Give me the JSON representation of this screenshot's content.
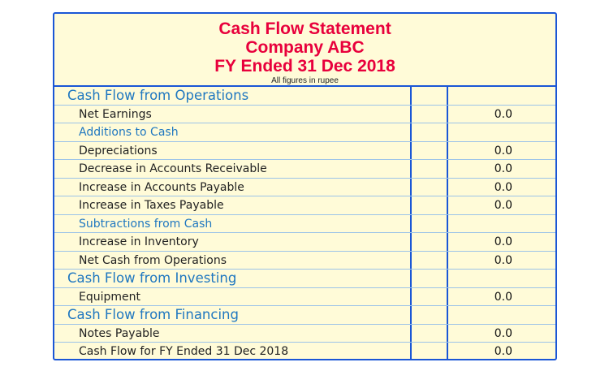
{
  "header": {
    "title": "Cash Flow Statement",
    "company": "Company ABC",
    "period": "FY Ended 31 Dec 2018",
    "note": "All figures in rupee"
  },
  "colors": {
    "border": "#1a56d6",
    "background": "#fffbd8",
    "title": "#e8003c",
    "section": "#1f77c0"
  },
  "rows": [
    {
      "type": "section",
      "label": "Cash Flow from Operations",
      "value": ""
    },
    {
      "type": "item",
      "label": "Net Earnings",
      "value": "0.0"
    },
    {
      "type": "sub",
      "label": "Additions to Cash",
      "value": ""
    },
    {
      "type": "item",
      "label": "Depreciations",
      "value": "0.0"
    },
    {
      "type": "item",
      "label": "Decrease in Accounts Receivable",
      "value": "0.0"
    },
    {
      "type": "item",
      "label": "Increase in Accounts Payable",
      "value": "0.0"
    },
    {
      "type": "item",
      "label": "Increase in Taxes Payable",
      "value": "0.0"
    },
    {
      "type": "sub",
      "label": "Subtractions from Cash",
      "value": ""
    },
    {
      "type": "item",
      "label": "Increase in Inventory",
      "value": "0.0"
    },
    {
      "type": "item",
      "label": "Net Cash from Operations",
      "value": "0.0"
    },
    {
      "type": "section",
      "label": "Cash Flow from Investing",
      "value": ""
    },
    {
      "type": "item",
      "label": "Equipment",
      "value": "0.0"
    },
    {
      "type": "section",
      "label": "Cash Flow from Financing",
      "value": ""
    },
    {
      "type": "item",
      "label": "Notes Payable",
      "value": "0.0"
    },
    {
      "type": "item",
      "label": "Cash Flow for FY Ended 31 Dec 2018",
      "value": "0.0"
    }
  ]
}
